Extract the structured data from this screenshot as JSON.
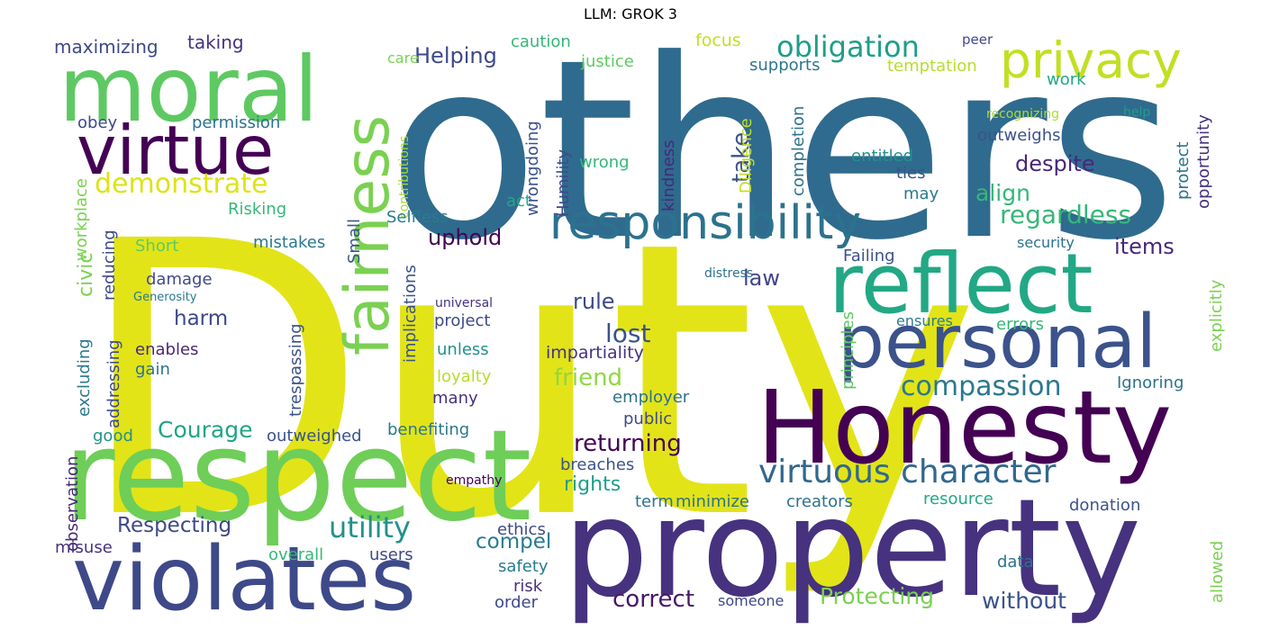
{
  "title": "LLM: GROK 3",
  "words": [
    {
      "text": "Duty",
      "color": "#e2e418"
    },
    {
      "text": "others",
      "color": "#2f6b8e"
    },
    {
      "text": "property",
      "color": "#46327e"
    },
    {
      "text": "respect",
      "color": "#6ece58"
    },
    {
      "text": "Honesty",
      "color": "#440154"
    },
    {
      "text": "moral",
      "color": "#5ec962"
    },
    {
      "text": "violates",
      "color": "#3e4989"
    },
    {
      "text": "reflect",
      "color": "#22a884"
    },
    {
      "text": "personal",
      "color": "#3b528b"
    },
    {
      "text": "virtue",
      "color": "#440154"
    },
    {
      "text": "fairness",
      "color": "#7ad151"
    },
    {
      "text": "privacy",
      "color": "#c2df23"
    },
    {
      "text": "responsibility",
      "color": "#2c728e"
    },
    {
      "text": "virtuous character",
      "color": "#31688e"
    },
    {
      "text": "obligation",
      "color": "#1f9e89"
    },
    {
      "text": "compassion",
      "color": "#2a788e"
    },
    {
      "text": "utility",
      "color": "#21918c"
    },
    {
      "text": "regardless",
      "color": "#35b779"
    },
    {
      "text": "demonstrate",
      "color": "#dde318"
    },
    {
      "text": "Respecting",
      "color": "#3e4989"
    },
    {
      "text": "Courage",
      "color": "#20a486"
    },
    {
      "text": "Protecting",
      "color": "#7ad151"
    },
    {
      "text": "returning",
      "color": "#440154"
    },
    {
      "text": "correct",
      "color": "#48186a"
    },
    {
      "text": "without",
      "color": "#3b528b"
    },
    {
      "text": "Helping",
      "color": "#3e4989"
    },
    {
      "text": "despite",
      "color": "#482878"
    },
    {
      "text": "align",
      "color": "#35b779"
    },
    {
      "text": "uphold",
      "color": "#440154"
    },
    {
      "text": "lost",
      "color": "#3b528b"
    },
    {
      "text": "friend",
      "color": "#8fd744"
    },
    {
      "text": "rights",
      "color": "#1f9e89"
    },
    {
      "text": "compel",
      "color": "#287c8e"
    },
    {
      "text": "take",
      "color": "#3b528b"
    },
    {
      "text": "law",
      "color": "#414487"
    },
    {
      "text": "rule",
      "color": "#3e4989"
    },
    {
      "text": "items",
      "color": "#482878"
    },
    {
      "text": "harm",
      "color": "#3e4989"
    },
    {
      "text": "impartiality",
      "color": "#46327e"
    },
    {
      "text": "civic",
      "color": "#7ad151"
    },
    {
      "text": "maximizing",
      "color": "#3e4989"
    },
    {
      "text": "taking",
      "color": "#46327e"
    },
    {
      "text": "caution",
      "color": "#35b779"
    },
    {
      "text": "justice",
      "color": "#5ec962"
    },
    {
      "text": "focus",
      "color": "#c2df23"
    },
    {
      "text": "supports",
      "color": "#2a788e"
    },
    {
      "text": "peer",
      "color": "#3e4989"
    },
    {
      "text": "temptation",
      "color": "#b5de2b"
    },
    {
      "text": "work",
      "color": "#22a884"
    },
    {
      "text": "opportunity",
      "color": "#46327e"
    },
    {
      "text": "care",
      "color": "#7ad151"
    },
    {
      "text": "obey",
      "color": "#3e4989"
    },
    {
      "text": "permission",
      "color": "#2c728e"
    },
    {
      "text": "kindness",
      "color": "#482878"
    },
    {
      "text": "outweighs",
      "color": "#3b528b"
    },
    {
      "text": "recognizing",
      "color": "#aadc32"
    },
    {
      "text": "help",
      "color": "#1f9e89"
    },
    {
      "text": "entitled",
      "color": "#21918c"
    },
    {
      "text": "ties",
      "color": "#3b528b"
    },
    {
      "text": "may",
      "color": "#287c8e"
    },
    {
      "text": "protect",
      "color": "#2c728e"
    },
    {
      "text": "wrong",
      "color": "#35b779"
    },
    {
      "text": "wrongdoing",
      "color": "#3b528b"
    },
    {
      "text": "Humility",
      "color": "#3e4989"
    },
    {
      "text": "Diligence",
      "color": "#c2df23"
    },
    {
      "text": "completion",
      "color": "#2c728e"
    },
    {
      "text": "contributions",
      "color": "#aadc32"
    },
    {
      "text": "workplace",
      "color": "#7ad151"
    },
    {
      "text": "Risking",
      "color": "#35b779"
    },
    {
      "text": "Small",
      "color": "#3b528b"
    },
    {
      "text": "act",
      "color": "#22a884"
    },
    {
      "text": "Selfless",
      "color": "#287c8e"
    },
    {
      "text": "Short",
      "color": "#5ec962"
    },
    {
      "text": "mistakes",
      "color": "#2a788e"
    },
    {
      "text": "reducing",
      "color": "#3e4989"
    },
    {
      "text": "damage",
      "color": "#3e4989"
    },
    {
      "text": "Generosity",
      "color": "#2a788e"
    },
    {
      "text": "implications",
      "color": "#3b528b"
    },
    {
      "text": "universal",
      "color": "#46327e"
    },
    {
      "text": "project",
      "color": "#3e4989"
    },
    {
      "text": "Failing",
      "color": "#3b528b"
    },
    {
      "text": "distress",
      "color": "#2c728e"
    },
    {
      "text": "security",
      "color": "#2c728e"
    },
    {
      "text": "explicitly",
      "color": "#7ad151"
    },
    {
      "text": "ensures",
      "color": "#287c8e"
    },
    {
      "text": "errors",
      "color": "#35b779"
    },
    {
      "text": "principles",
      "color": "#5ec962"
    },
    {
      "text": "excluding",
      "color": "#2a788e"
    },
    {
      "text": "addressing",
      "color": "#3e4989"
    },
    {
      "text": "enables",
      "color": "#482878"
    },
    {
      "text": "gain",
      "color": "#2c728e"
    },
    {
      "text": "unless",
      "color": "#21918c"
    },
    {
      "text": "loyalty",
      "color": "#b5de2b"
    },
    {
      "text": "trespassing",
      "color": "#3b528b"
    },
    {
      "text": "many",
      "color": "#46327e"
    },
    {
      "text": "employer",
      "color": "#2c728e"
    },
    {
      "text": "Ignoring",
      "color": "#2c728e"
    },
    {
      "text": "public",
      "color": "#3e4989"
    },
    {
      "text": "good",
      "color": "#21918c"
    },
    {
      "text": "outweighed",
      "color": "#3b528b"
    },
    {
      "text": "benefiting",
      "color": "#2a788e"
    },
    {
      "text": "observation",
      "color": "#482878"
    },
    {
      "text": "breaches",
      "color": "#3b528b"
    },
    {
      "text": "empathy",
      "color": "#440154"
    },
    {
      "text": "term",
      "color": "#2c728e"
    },
    {
      "text": "minimize",
      "color": "#2c728e"
    },
    {
      "text": "creators",
      "color": "#2c728e"
    },
    {
      "text": "resource",
      "color": "#22a884"
    },
    {
      "text": "donation",
      "color": "#3b528b"
    },
    {
      "text": "misuse",
      "color": "#46327e"
    },
    {
      "text": "ethics",
      "color": "#3e4989"
    },
    {
      "text": "overall",
      "color": "#35b779"
    },
    {
      "text": "users",
      "color": "#3e4989"
    },
    {
      "text": "safety",
      "color": "#287c8e"
    },
    {
      "text": "risk",
      "color": "#46327e"
    },
    {
      "text": "order",
      "color": "#3e4989"
    },
    {
      "text": "someone",
      "color": "#3e4989"
    },
    {
      "text": "data",
      "color": "#2c728e"
    },
    {
      "text": "allowed",
      "color": "#7ad151"
    }
  ]
}
